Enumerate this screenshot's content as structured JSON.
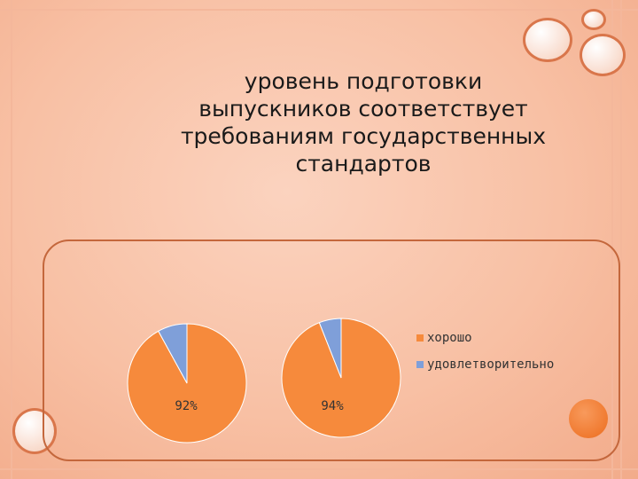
{
  "title": "уровень подготовки выпускников соответствует требованиям государственных стандартов",
  "colors": {
    "series_good": "#f68a3c",
    "series_satisfactory": "#7f9fd9",
    "frame": "#c4673c",
    "accent_dot": "#f07a30"
  },
  "chart_data": [
    {
      "type": "pie",
      "categories": [
        "хорошо",
        "удовлетворительно"
      ],
      "values": [
        92,
        8
      ],
      "data_labels": [
        "92%"
      ]
    },
    {
      "type": "pie",
      "categories": [
        "хорошо",
        "удовлетворительно"
      ],
      "values": [
        94,
        6
      ],
      "data_labels": [
        "94%"
      ]
    }
  ],
  "legend": {
    "placement": "right",
    "items": [
      "хорошо",
      "удовлетворительно"
    ]
  }
}
